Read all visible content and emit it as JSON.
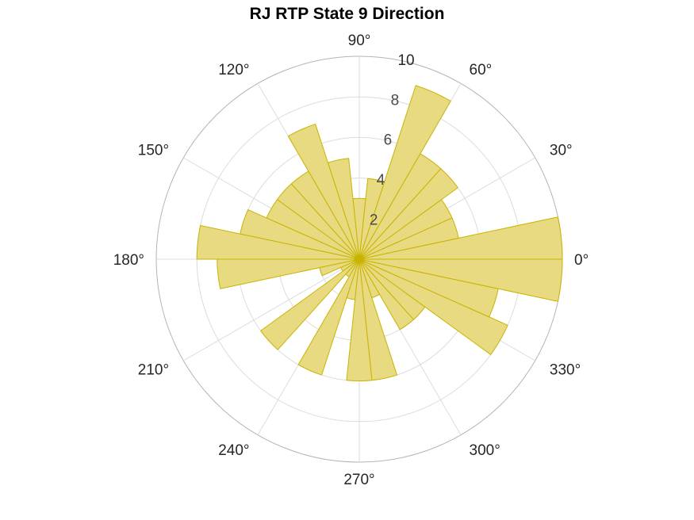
{
  "chart_data": {
    "type": "polar_histogram",
    "title": "RJ  RTP State 9 Direction",
    "theta_unit": "degrees",
    "bin_width_deg": 12,
    "theta_ticks": [
      0,
      30,
      60,
      90,
      120,
      150,
      180,
      210,
      240,
      270,
      300,
      330
    ],
    "theta_tick_labels": [
      "0°",
      "30°",
      "60°",
      "90°",
      "120°",
      "150°",
      "180°",
      "210°",
      "240°",
      "270°",
      "300°",
      "330°"
    ],
    "r_ticks": [
      2,
      4,
      6,
      8,
      10
    ],
    "r_tick_labels": [
      "2",
      "4",
      "6",
      "8",
      "10"
    ],
    "rlim": [
      0,
      10
    ],
    "bin_edges_deg": [
      0,
      12,
      24,
      36,
      48,
      60,
      72,
      84,
      96,
      108,
      120,
      132,
      144,
      156,
      168,
      180,
      192,
      204,
      216,
      228,
      240,
      252,
      264,
      276,
      288,
      300,
      312,
      324,
      336,
      348,
      360
    ],
    "values": [
      10,
      5,
      5,
      6,
      6,
      9,
      4,
      3,
      5,
      7,
      5,
      5,
      5,
      6,
      8,
      7,
      2,
      1,
      6,
      1,
      6,
      2,
      6,
      6,
      2,
      4,
      4,
      8,
      7,
      10
    ],
    "colors": {
      "fill": "#E6D87A",
      "edge": "#C9B400",
      "grid": "#DCDCDC",
      "outer": "#B4B4B4",
      "text": "#262626",
      "rtext": "#4A4A4A"
    },
    "grid": true
  }
}
